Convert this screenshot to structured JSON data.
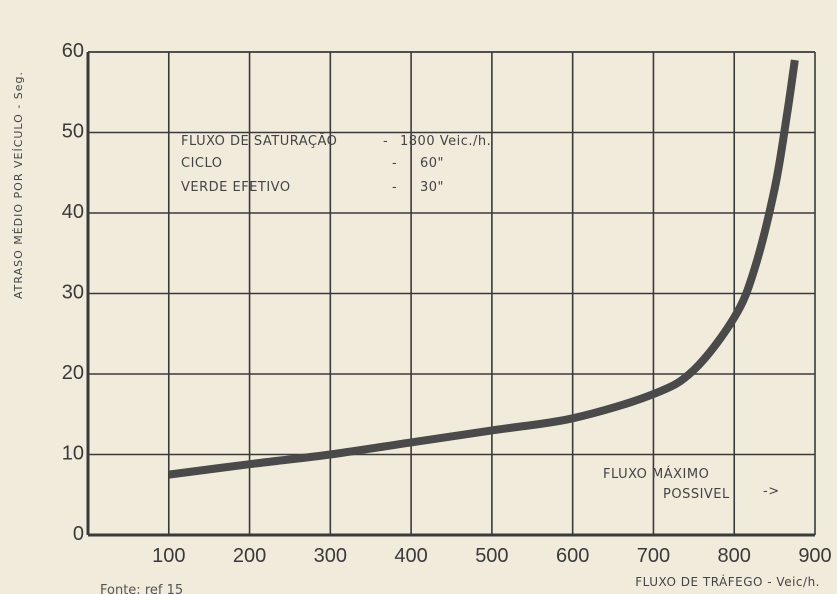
{
  "chart_data": {
    "type": "line",
    "xlabel": "FLUXO DE TRÁFEGO - Veic/h.",
    "ylabel": "ATRASO MÉDIO POR VEÍCULO - Seg.",
    "xlim": [
      0,
      900
    ],
    "ylim": [
      0,
      60
    ],
    "x_ticks": [
      "100",
      "200",
      "300",
      "400",
      "500",
      "600",
      "700",
      "800",
      "900"
    ],
    "y_ticks": [
      "0",
      "10",
      "20",
      "30",
      "40",
      "50",
      "60"
    ],
    "grid": true,
    "series": [
      {
        "x": [
          100,
          200,
          300,
          400,
          500,
          600,
          700,
          750,
          800,
          825,
          850,
          865,
          875
        ],
        "y": [
          7.5,
          8.8,
          10,
          11.5,
          13,
          14.5,
          17.5,
          20.5,
          27,
          33,
          43,
          52,
          59
        ]
      }
    ],
    "annotations": {
      "conditions": [
        {
          "label": "FLUXO DE SATURAÇÃO",
          "sep": "-",
          "value": "1800 Veic./h."
        },
        {
          "label": "CICLO",
          "sep": "-",
          "value": "60\""
        },
        {
          "label": "VERDE EFETIVO",
          "sep": "-",
          "value": "30\""
        }
      ],
      "max_flow_line1": "FLUXO MÁXIMO",
      "max_flow_line2": "POSSIVEL",
      "arrow": "->"
    },
    "source": "Fonte: ref 15",
    "colors": {
      "curve": "#4a4a4a",
      "grid": "#3a3a3a",
      "background": "#f1ebdc"
    }
  }
}
